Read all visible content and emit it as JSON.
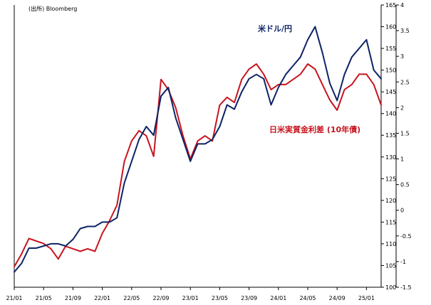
{
  "chart_data": {
    "type": "line",
    "source": "(出所) Bloomberg",
    "x": [
      "21/01",
      "21/02",
      "21/03",
      "21/04",
      "21/05",
      "21/06",
      "21/07",
      "21/08",
      "21/09",
      "21/10",
      "21/11",
      "21/12",
      "22/01",
      "22/02",
      "22/03",
      "22/04",
      "22/05",
      "22/06",
      "22/07",
      "22/08",
      "22/09",
      "22/10",
      "22/11",
      "22/12",
      "23/01",
      "23/02",
      "23/03",
      "23/04",
      "23/05",
      "23/06",
      "23/07",
      "23/08",
      "23/09",
      "23/10",
      "23/11",
      "23/12",
      "24/01",
      "24/02",
      "24/03",
      "24/04",
      "24/05",
      "24/06",
      "24/07",
      "24/08",
      "24/09",
      "24/10",
      "24/11",
      "24/12",
      "25/01",
      "25/02",
      "25/03"
    ],
    "x_ticks": [
      "21/01",
      "21/05",
      "21/09",
      "22/01",
      "22/05",
      "22/09",
      "23/01",
      "23/05",
      "23/09",
      "24/01",
      "24/05",
      "24/09",
      "25/01"
    ],
    "series": [
      {
        "name": "米ドル/円",
        "axis": "right",
        "color": "#0d2366",
        "values": [
          103.5,
          105.5,
          109,
          109,
          109.5,
          110,
          110,
          109.5,
          111,
          113.5,
          114,
          114,
          115,
          115,
          116,
          124,
          129,
          134,
          137,
          135,
          144,
          146,
          139,
          134,
          129,
          133,
          133,
          134,
          137,
          142,
          141,
          145,
          148,
          149,
          148,
          142,
          146,
          149,
          151,
          153,
          157,
          160,
          154,
          147,
          143,
          149,
          153,
          155,
          157,
          150,
          148
        ]
      },
      {
        "name": "日米実質金利差 (10年債)",
        "axis": "left",
        "color": "#c8141e",
        "values": [
          -1.1,
          -0.85,
          -0.55,
          -0.6,
          -0.65,
          -0.75,
          -0.95,
          -0.7,
          -0.75,
          -0.8,
          -0.75,
          -0.8,
          -0.45,
          -0.2,
          0.1,
          0.95,
          1.35,
          1.55,
          1.45,
          1.05,
          2.55,
          2.35,
          2.0,
          1.45,
          1.0,
          1.35,
          1.45,
          1.35,
          2.05,
          2.2,
          2.1,
          2.55,
          2.75,
          2.85,
          2.65,
          2.35,
          2.45,
          2.45,
          2.55,
          2.65,
          2.85,
          2.75,
          2.45,
          2.15,
          1.95,
          2.35,
          2.45,
          2.65,
          2.65,
          2.45,
          2.05
        ]
      }
    ],
    "right_axis": {
      "range": [
        100,
        165
      ],
      "ticks": [
        100,
        105,
        110,
        115,
        120,
        125,
        130,
        135,
        140,
        145,
        150,
        155,
        160,
        165
      ]
    },
    "left_axis": {
      "range": [
        -1.5,
        4
      ],
      "ticks": [
        -1.5,
        -1,
        -0.5,
        0,
        0.5,
        1,
        1.5,
        2,
        2.5,
        3,
        3.5,
        4
      ]
    },
    "grid": false,
    "legend": "inline labels"
  }
}
